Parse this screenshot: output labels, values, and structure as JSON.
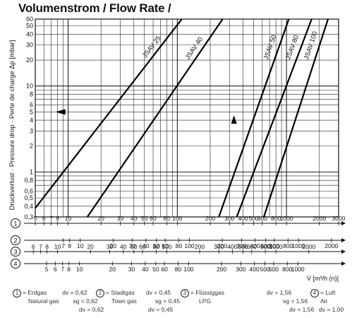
{
  "chart_data": {
    "type": "line",
    "title": "Volumenstrom / Flow Rate /",
    "ylabel": "Druckverlust · Pressure drop · Perte de charge  Δp [mbar]",
    "xlabel": "V̇ [m³/h (n)]",
    "x_scale": "log",
    "y_scale": "log",
    "xlim": [
      5.0,
      3000
    ],
    "ylim": [
      0.3,
      60
    ],
    "y_ticks": [
      "0,3",
      "0,4",
      "0,5",
      "0,6",
      "0,8",
      "1",
      "2",
      "3",
      "4",
      "5",
      "6",
      "8",
      "10",
      "20",
      "30",
      "40",
      "50",
      "60"
    ],
    "series": [
      {
        "name": "JSAV 25",
        "x": [
          5.0,
          110
        ],
        "y": [
          0.38,
          60
        ]
      },
      {
        "name": "JSAV 40",
        "x": [
          15.0,
          260
        ],
        "y": [
          0.3,
          60
        ]
      },
      {
        "name": "JSAV 50",
        "x": [
          240,
          1050
        ],
        "y": [
          0.3,
          60
        ]
      },
      {
        "name": "JSAV 80",
        "x": [
          350,
          1700
        ],
        "y": [
          0.3,
          60
        ]
      },
      {
        "name": "JSAV 100",
        "x": [
          620,
          2400
        ],
        "y": [
          0.3,
          60
        ]
      }
    ],
    "annotations": [
      {
        "type": "arrow-left",
        "x": 8.5,
        "y": 5.0
      },
      {
        "type": "arrow-up",
        "x": 330,
        "y": 4.0
      }
    ],
    "scales": [
      {
        "id": "1",
        "labels": [
          "5",
          "6",
          "7",
          "8",
          "10",
          "20",
          "30",
          "40",
          "50",
          "60",
          "80",
          "100",
          "200",
          "300",
          "400",
          "500",
          "600",
          "800",
          "1000",
          "2000",
          "3000"
        ],
        "values": [
          5,
          6,
          7,
          8,
          10,
          20,
          30,
          40,
          50,
          60,
          80,
          100,
          200,
          300,
          400,
          500,
          600,
          800,
          1000,
          2000,
          3000
        ],
        "factor": 1,
        "label_side": "above"
      },
      {
        "id": "2",
        "labels": [
          "7",
          "8",
          "10",
          "20",
          "30",
          "40",
          "50",
          "60",
          "80",
          "100",
          "200",
          "300",
          "400",
          "500",
          "600",
          "800",
          "1000",
          "2000",
          "3000"
        ],
        "values": [
          7,
          8,
          10,
          20,
          30,
          40,
          50,
          60,
          80,
          100,
          200,
          300,
          400,
          500,
          600,
          800,
          1000,
          2000,
          3000
        ],
        "factor": 1.29,
        "label_side": "below"
      },
      {
        "id": "3",
        "labels": [
          "4",
          "5",
          "6",
          "7",
          "8",
          "10",
          "20",
          "30",
          "40",
          "50",
          "60",
          "80",
          "100",
          "200",
          "300",
          "400",
          "500",
          "600",
          "800",
          "1000",
          "2000"
        ],
        "values": [
          4,
          5,
          6,
          7,
          8,
          10,
          20,
          30,
          40,
          50,
          60,
          80,
          100,
          200,
          300,
          400,
          500,
          600,
          800,
          1000,
          2000
        ],
        "factor": 0.8,
        "label_side": "above"
      },
      {
        "id": "4",
        "labels": [
          "5",
          "6",
          "7",
          "8",
          "10",
          "20",
          "30",
          "40",
          "50",
          "60",
          "80",
          "100",
          "200",
          "300",
          "400",
          "500",
          "600",
          "800",
          "1000"
        ],
        "values": [
          5,
          6,
          7,
          8,
          10,
          20,
          30,
          40,
          50,
          60,
          80,
          100,
          200,
          300,
          400,
          500,
          600,
          800,
          1000
        ],
        "factor": 1.27,
        "label_side": "below"
      }
    ]
  },
  "legend": {
    "gas1": {
      "num": "1",
      "name_de": "= Erdgas",
      "name_en": "Natural gas",
      "dv": "dv = 0,62",
      "sg": "sg = 0,62",
      "d": "dv = 0,62"
    },
    "gas2": {
      "num": "2",
      "name_de": "= Stadtgas",
      "name_en": "Town gas",
      "dv": "dv = 0,45",
      "sg": "sg = 0,45",
      "d": "dv = 0,45"
    },
    "gas3": {
      "num": "3",
      "name_de": "= Flüssiggas",
      "name_en": "LPG",
      "dv": "dv = 1,56",
      "sg": "sg = 1,56",
      "d": "dv = 1,56"
    },
    "gas4": {
      "num": "4",
      "name_de": "= Luft",
      "name_en": "Air",
      "dv": "dv = 1,00",
      "sg": "sg = 1,00",
      "d": "dv = 1,00"
    }
  }
}
